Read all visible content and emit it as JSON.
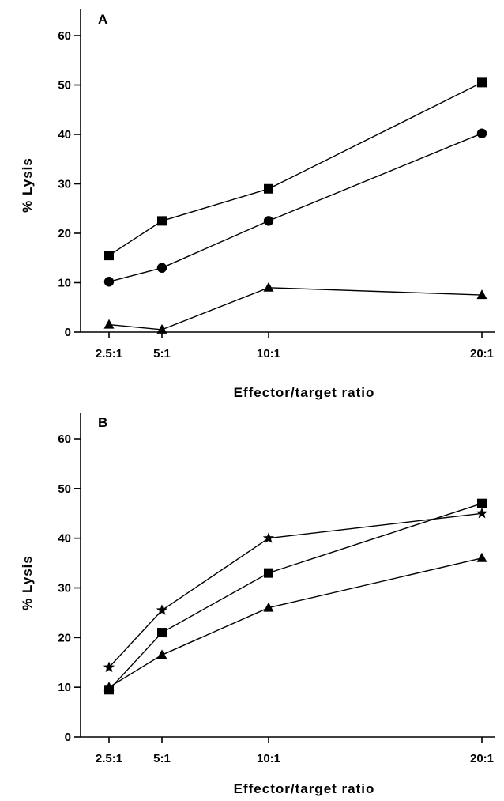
{
  "chart_data": [
    {
      "type": "line",
      "panel_label": "A",
      "xlabel": "Effector/target ratio",
      "ylabel": "% Lysis",
      "categories": [
        "2.5:1",
        "5:1",
        "10:1",
        "20:1"
      ],
      "x": [
        2.5,
        5,
        10,
        20
      ],
      "ylim": [
        0,
        60
      ],
      "yticks": [
        0,
        10,
        20,
        30,
        40,
        50,
        60
      ],
      "grid": false,
      "series": [
        {
          "marker": "square",
          "values": [
            15.5,
            22.5,
            29,
            50.5
          ]
        },
        {
          "marker": "circle",
          "values": [
            10.2,
            13,
            22.5,
            40.2
          ]
        },
        {
          "marker": "triangle",
          "values": [
            1.5,
            0.5,
            9,
            7.5
          ]
        }
      ]
    },
    {
      "type": "line",
      "panel_label": "B",
      "xlabel": "Effector/target ratio",
      "ylabel": "% Lysis",
      "categories": [
        "2.5:1",
        "5:1",
        "10:1",
        "20:1"
      ],
      "x": [
        2.5,
        5,
        10,
        20
      ],
      "ylim": [
        0,
        60
      ],
      "yticks": [
        0,
        10,
        20,
        30,
        40,
        50,
        60
      ],
      "grid": false,
      "series": [
        {
          "marker": "star",
          "values": [
            14,
            25.5,
            40,
            45
          ]
        },
        {
          "marker": "square",
          "values": [
            9.5,
            21,
            33,
            47
          ]
        },
        {
          "marker": "triangle",
          "values": [
            10,
            16.5,
            26,
            36
          ]
        }
      ]
    }
  ]
}
